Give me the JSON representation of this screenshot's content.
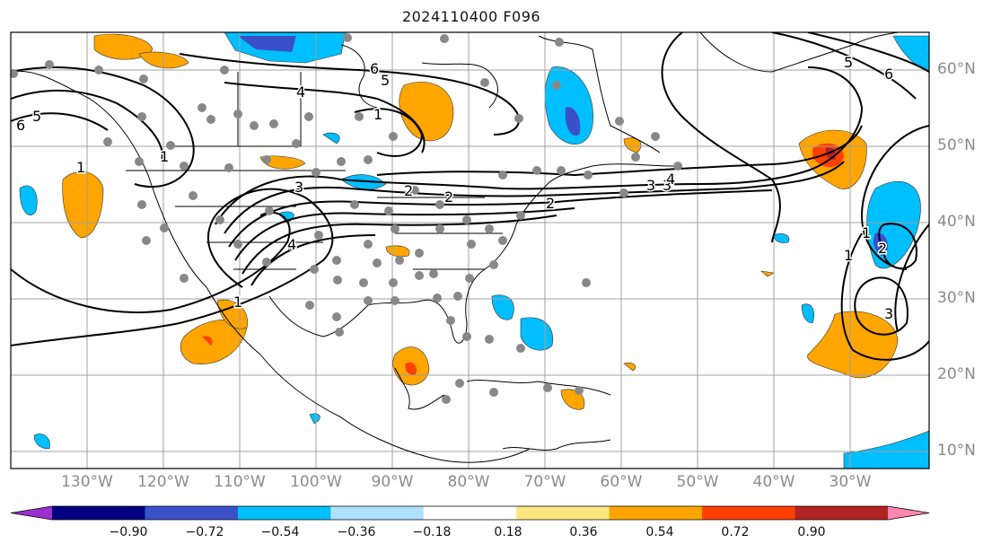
{
  "title": "2024110400 F096",
  "lon_labels": [
    "130°W",
    "120°W",
    "110°W",
    "100°W",
    "90°W",
    "80°W",
    "70°W",
    "60°W",
    "50°W",
    "40°W",
    "30°W"
  ],
  "lat_labels": [
    "60°N",
    "50°N",
    "40°N",
    "30°N",
    "20°N",
    "10°N"
  ],
  "colorbar": {
    "ticks": [
      "−0.90",
      "−0.72",
      "−0.54",
      "−0.36",
      "−0.18",
      "0.18",
      "0.36",
      "0.54",
      "0.72",
      "0.90"
    ],
    "colors": [
      "#9b30d0",
      "#000080",
      "#3a50c8",
      "#00bfff",
      "#b0e0ff",
      "#ffffff",
      "#ffe680",
      "#ffa500",
      "#ff4000",
      "#b22222",
      "#ff88b0"
    ]
  },
  "contour_labels": [
    "6",
    "5",
    "4",
    "3",
    "2",
    "1",
    "1",
    "1",
    "6",
    "5",
    "4",
    "3",
    "2",
    "1",
    "1",
    "6",
    "5",
    "4",
    "3",
    "2",
    "3",
    "1",
    "2"
  ]
}
